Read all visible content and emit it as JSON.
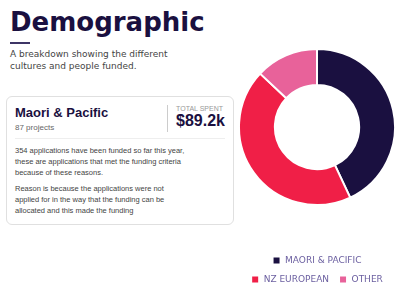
{
  "chart_data": {
    "type": "doughnut",
    "title": "Demographic",
    "subtitle": [
      "A breakdown showing the different",
      "cultures and people funded."
    ],
    "categories": [
      "MAORI & PACIFIC",
      "NZ EUROPEAN",
      "OTHER"
    ],
    "values": [
      0.43,
      0.44,
      0.13
    ],
    "colors": [
      "#1a1040",
      "#f01f47",
      "#e8629a"
    ],
    "legend": "bottom",
    "annotations": [
      "Maori & Pacific",
      "87 projects",
      "TOTAL SPENT",
      "$89.2k",
      "354 applications have been funded so far this year,",
      "these are applications that met the funding criteria",
      "because of these reasons.",
      "Reason is because the applications were not",
      "applied for in the way that the funding can be",
      "allocated and this made the funding"
    ]
  }
}
